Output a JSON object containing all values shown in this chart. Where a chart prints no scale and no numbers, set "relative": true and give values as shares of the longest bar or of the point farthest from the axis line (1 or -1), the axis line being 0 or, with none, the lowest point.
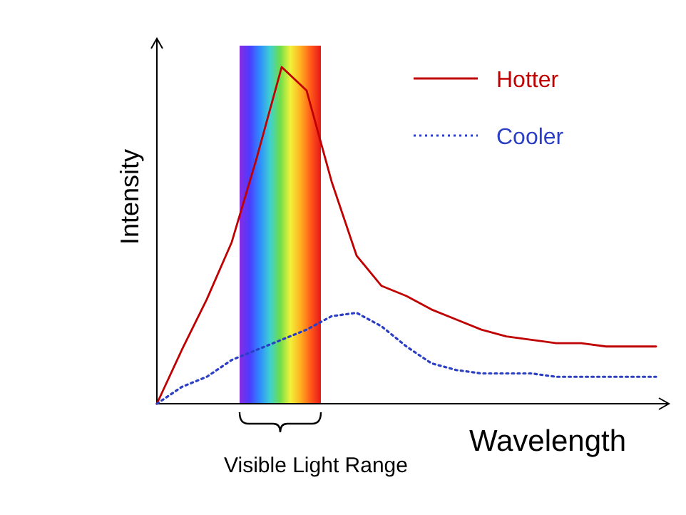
{
  "chart_data": {
    "type": "line",
    "relative": true,
    "xlabel": "Wavelength",
    "ylabel": "Intensity",
    "categories": [
      null,
      null,
      null,
      null,
      null,
      null,
      null,
      null,
      null,
      null,
      null,
      null,
      null,
      null,
      null,
      null,
      null,
      null,
      null,
      null,
      null
    ],
    "legend": "top right",
    "series": [
      {
        "name": "Hotter",
        "color": "#c00000",
        "line_style": "solid",
        "values": [
          0,
          0.16,
          0.31,
          0.48,
          0.73,
          1,
          0.93,
          0.66,
          0.44,
          0.35,
          0.32,
          0.28,
          0.25,
          0.22,
          0.2,
          0.19,
          0.18,
          0.18,
          0.17,
          0.17,
          0.17
        ]
      },
      {
        "name": "Cooler",
        "color": "#2a3fc4",
        "line_style": "dotted",
        "values": [
          0,
          0.05,
          0.08,
          0.13,
          0.16,
          0.19,
          0.22,
          0.26,
          0.27,
          0.23,
          0.17,
          0.12,
          0.1,
          0.09,
          0.09,
          0.09,
          0.08,
          0.08,
          0.08,
          0.08,
          0.08
        ]
      }
    ],
    "annotations": [
      "Visible Light Range"
    ]
  }
}
